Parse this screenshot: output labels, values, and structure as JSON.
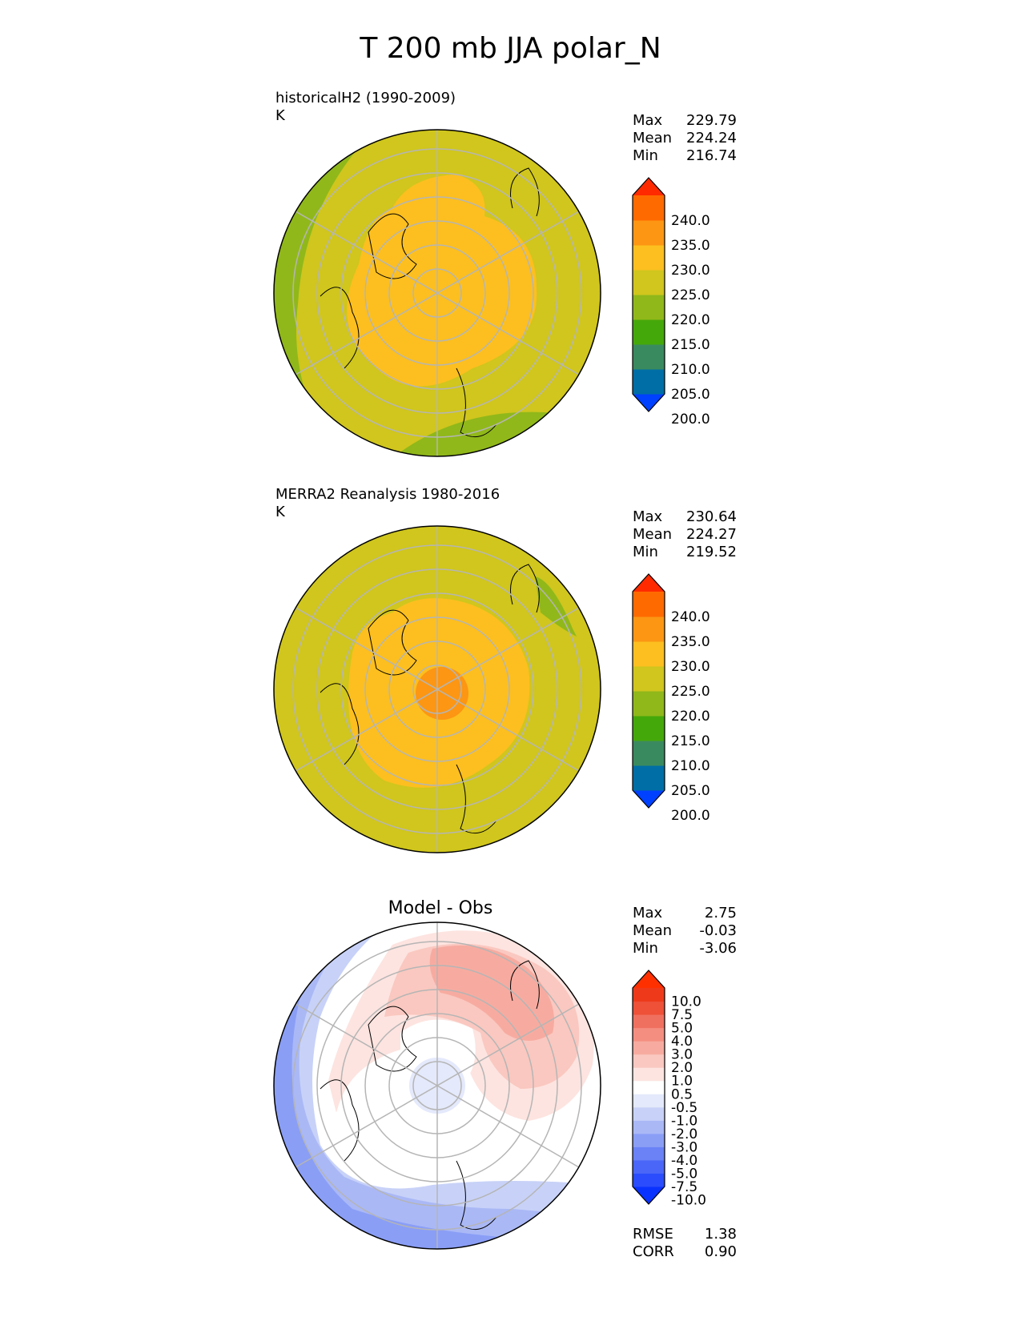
{
  "title": "T 200 mb JJA polar_N",
  "panels": [
    {
      "label": "historicalH2 (1990-2009)",
      "units": "K",
      "stats": [
        {
          "name": "Max",
          "value": "229.79"
        },
        {
          "name": "Mean",
          "value": "224.24"
        },
        {
          "name": "Min",
          "value": "216.74"
        }
      ]
    },
    {
      "label": "MERRA2 Reanalysis 1980-2016",
      "units": "K",
      "stats": [
        {
          "name": "Max",
          "value": "230.64"
        },
        {
          "name": "Mean",
          "value": "224.27"
        },
        {
          "name": "Min",
          "value": "219.52"
        }
      ]
    },
    {
      "title": "Model - Obs",
      "stats": [
        {
          "name": "Max",
          "value": "2.75"
        },
        {
          "name": "Mean",
          "value": "-0.03"
        },
        {
          "name": "Min",
          "value": "-3.06"
        }
      ],
      "metrics": [
        {
          "name": "RMSE",
          "value": "1.38"
        },
        {
          "name": "CORR",
          "value": "0.90"
        }
      ]
    }
  ],
  "colorbars": {
    "field": {
      "ticks": [
        "240.0",
        "235.0",
        "230.0",
        "225.0",
        "220.0",
        "215.0",
        "210.0",
        "205.0",
        "200.0"
      ],
      "colors": [
        "#0040ff",
        "#006ea6",
        "#3a8a5f",
        "#45a80a",
        "#90b81a",
        "#d0c61d",
        "#fcbf1f",
        "#fc9613",
        "#ff6a00",
        "#ff2a00"
      ]
    },
    "diff": {
      "ticks": [
        "10.0",
        "7.5",
        "5.0",
        "4.0",
        "3.0",
        "2.0",
        "1.0",
        "0.5",
        "-0.5",
        "-1.0",
        "-2.0",
        "-3.0",
        "-4.0",
        "-5.0",
        "-7.5",
        "-10.0"
      ],
      "colors": [
        "#0a32ff",
        "#2a4cfc",
        "#4a66f8",
        "#6a82f6",
        "#8a9ef6",
        "#aab8f6",
        "#c8d2f8",
        "#e4e9fb",
        "#ffffff",
        "#fde4e0",
        "#fac8c0",
        "#f7aba0",
        "#f48e80",
        "#f07060",
        "#ee5038",
        "#ee3a1a",
        "#ff3000"
      ]
    }
  }
}
